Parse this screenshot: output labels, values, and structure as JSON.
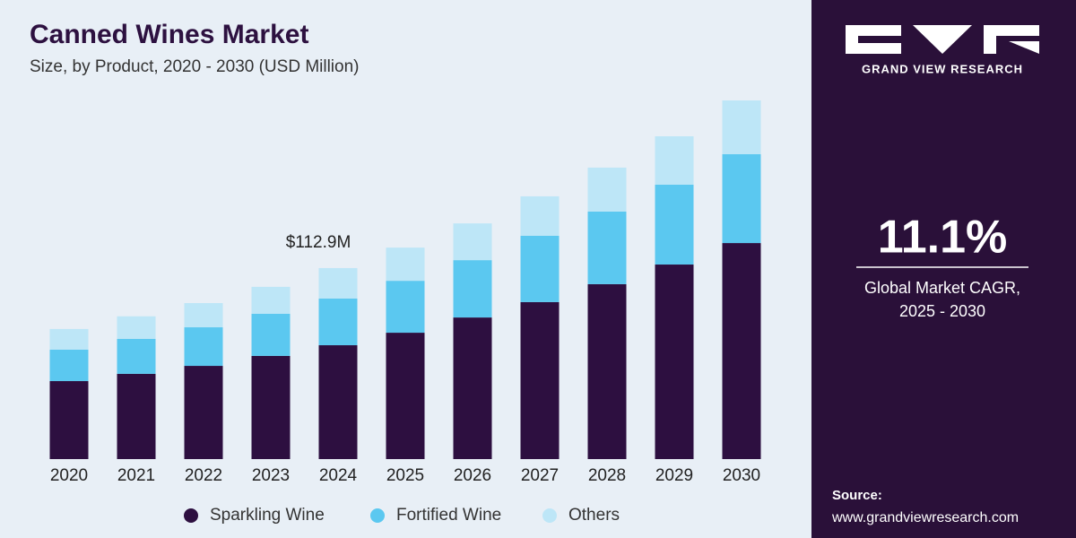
{
  "chart_data": {
    "type": "stacked_bar",
    "title": "Canned Wines Market",
    "subtitle": "Size, by Product, 2020 - 2030 (USD Million)",
    "categories": [
      "2020",
      "2021",
      "2022",
      "2023",
      "2024",
      "2025",
      "2026",
      "2027",
      "2028",
      "2029",
      "2030"
    ],
    "series": [
      {
        "name": "Sparkling Wine",
        "color": "#2d0f40",
        "values": [
          46.1,
          50.4,
          55.1,
          61.0,
          67.3,
          74.7,
          83.7,
          92.8,
          103.4,
          115.0,
          127.7
        ]
      },
      {
        "name": "Fortified Wine",
        "color": "#5bc8f0",
        "values": [
          18.6,
          20.7,
          22.8,
          24.9,
          27.6,
          30.7,
          33.9,
          39.2,
          42.9,
          47.2,
          52.5
        ]
      },
      {
        "name": "Others",
        "color": "#bde6f7",
        "values": [
          12.2,
          13.3,
          14.3,
          15.9,
          18.0,
          19.6,
          21.7,
          23.3,
          26.0,
          28.6,
          31.8
        ]
      }
    ],
    "annotations": [
      {
        "text": "$112.9M",
        "x": "2024",
        "value": 112.9
      }
    ]
  },
  "sidebar": {
    "brand": "GRAND VIEW RESEARCH",
    "cagr": "11.1%",
    "cagr_label": [
      "Global Market CAGR,",
      "2025 - 2030"
    ],
    "source_title": "Source:",
    "source_url": "www.grandviewresearch.com"
  }
}
